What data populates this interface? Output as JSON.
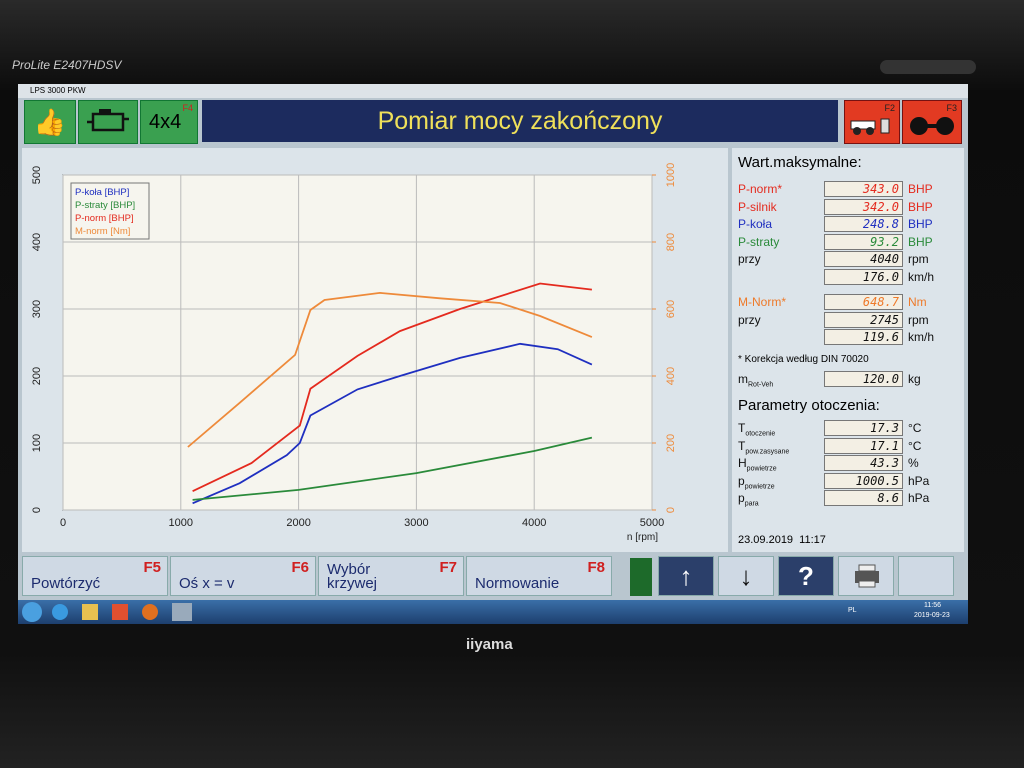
{
  "monitor": {
    "model": "ProLite E2407HDSV",
    "brand": "iiyama"
  },
  "window_title": "LPS 3000 PKW",
  "toolbar": {
    "drive": "4x4",
    "drive_key": "F4",
    "title": "Pomiar mocy zakończony",
    "key_left": "F2",
    "key_right": "F3"
  },
  "chart_data": {
    "type": "line",
    "x_label": "n [rpm]",
    "xlim": [
      0,
      5000
    ],
    "xticks": [
      0,
      1000,
      2000,
      3000,
      4000,
      5000
    ],
    "ylim": [
      0,
      500
    ],
    "yticks": [
      0,
      100,
      200,
      300,
      400,
      500
    ],
    "y2lim": [
      0,
      1000
    ],
    "y2ticks": [
      0,
      200,
      400,
      600,
      800,
      1000
    ],
    "grid": true,
    "legend": "upper left",
    "series": [
      {
        "name": "P-koła [BHP]",
        "color": "#1f2fc0",
        "x": [
          1100,
          1500,
          1900,
          2010,
          2100,
          2500,
          2860,
          3370,
          3880,
          4200,
          4490
        ],
        "values": [
          10,
          40,
          82,
          100,
          141,
          180,
          200,
          227,
          248,
          240,
          217
        ]
      },
      {
        "name": "P-straty [BHP]",
        "color": "#2a8a3a",
        "x": [
          1100,
          2000,
          3000,
          4000,
          4490
        ],
        "values": [
          15,
          30,
          55,
          88,
          108
        ]
      },
      {
        "name": "P-norm [BHP]",
        "color": "#e42a1e",
        "x": [
          1100,
          1600,
          2010,
          2100,
          2500,
          2860,
          3370,
          4050,
          4490
        ],
        "values": [
          28,
          70,
          126,
          181,
          230,
          267,
          300,
          338,
          329
        ]
      },
      {
        "name": "M-norm [Nm]",
        "color": "#ee8a3a",
        "axis": "y2",
        "x": [
          1060,
          1500,
          1970,
          2100,
          2220,
          2690,
          3200,
          3710,
          4050,
          4490
        ],
        "values": [
          188,
          320,
          463,
          597,
          627,
          648,
          632,
          618,
          579,
          516
        ]
      }
    ]
  },
  "max_values": {
    "title": "Wart.maksymalne:",
    "power_rows": [
      {
        "label": "P-norm*",
        "value": "343.0",
        "unit": "BHP",
        "color": "#e42a1e"
      },
      {
        "label": "P-silnik",
        "value": "342.0",
        "unit": "BHP",
        "color": "#e42a1e"
      },
      {
        "label": "P-koła",
        "value": "248.8",
        "unit": "BHP",
        "color": "#1f2fc0"
      },
      {
        "label": "P-straty",
        "value": "93.2",
        "unit": "BHP",
        "color": "#2a8a3a"
      },
      {
        "label": "przy",
        "value": "4040",
        "unit": "rpm",
        "color": "#111111"
      },
      {
        "value": "176.0",
        "unit": "km/h",
        "color": "#111111"
      }
    ],
    "torque_rows": [
      {
        "label": "M-Norm*",
        "value": "648.7",
        "unit": "Nm",
        "color": "#ee7a2a"
      },
      {
        "label": "przy",
        "value": "2745",
        "unit": "rpm",
        "color": "#111111"
      },
      {
        "value": "119.6",
        "unit": "km/h",
        "color": "#111111"
      }
    ],
    "note": "* Korekcja według DIN 70020",
    "mass": {
      "label": "m",
      "sub": "Rot-Veh",
      "value": "120.0",
      "unit": "kg"
    }
  },
  "ambient": {
    "title": "Parametry otoczenia:",
    "rows": [
      {
        "label": "T",
        "sub": "otoczenie",
        "value": "17.3",
        "unit": "°C"
      },
      {
        "label": "T",
        "sub": "pow.zasysane",
        "value": "17.1",
        "unit": "°C"
      },
      {
        "label": "H",
        "sub": "powietrze",
        "value": "43.3",
        "unit": "%"
      },
      {
        "label": "p",
        "sub": "powietrze",
        "value": "1000.5",
        "unit": "hPa"
      },
      {
        "label": "p",
        "sub": "para",
        "value": "8.6",
        "unit": "hPa"
      }
    ]
  },
  "timestamp": "23.09.2019  11:17",
  "buttons": [
    {
      "label": "Powtórzyć",
      "key": "F5"
    },
    {
      "label": "Oś x = v",
      "key": "F6"
    },
    {
      "label": "Wybór krzywej",
      "key": "F7"
    },
    {
      "label": "Normowanie",
      "key": "F8"
    }
  ],
  "taskbar": {
    "lang": "PL",
    "time": "11:56",
    "date": "2019-09-23"
  }
}
